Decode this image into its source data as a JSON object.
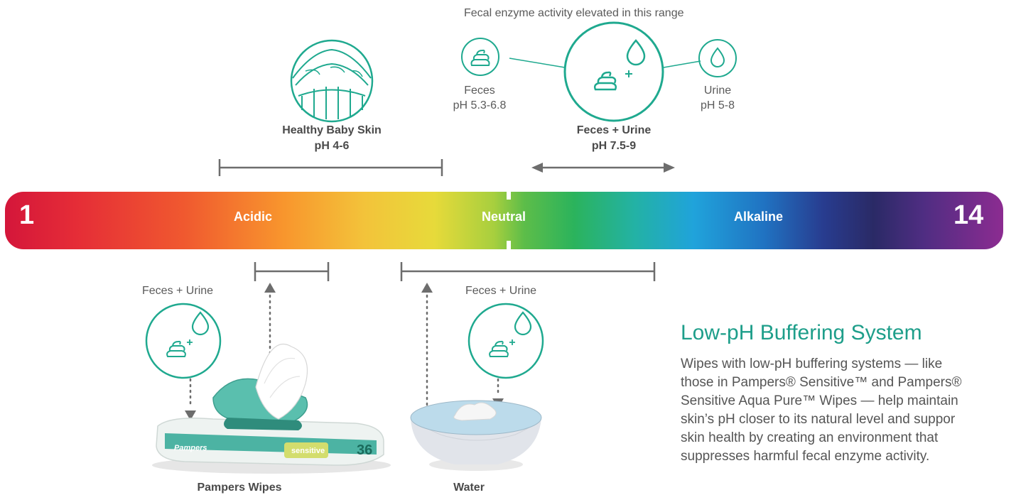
{
  "top_note": "Fecal enzyme activity elevated in this range",
  "healthy_skin": {
    "name": "Healthy Baby Skin",
    "ph": "pH 4-6"
  },
  "feces": {
    "name": "Feces",
    "ph": "pH 5.3-6.8"
  },
  "feces_urine": {
    "name": "Feces + Urine",
    "ph": "pH 7.5-9"
  },
  "urine": {
    "name": "Urine",
    "ph": "pH 5-8"
  },
  "scale": {
    "min": "1",
    "max": "14",
    "acidic": "Acidic",
    "neutral": "Neutral",
    "alkaline": "Alkaline"
  },
  "wipes_side": {
    "label": "Feces + Urine",
    "product": "Pampers Wipes"
  },
  "water_side": {
    "label": "Feces + Urine",
    "product": "Water"
  },
  "wipes_pack": {
    "brand": "Pampers",
    "variant": "sensitive",
    "count": "36"
  },
  "buffer": {
    "title": "Low-pH Buffering System",
    "lines": [
      "Wipes with low-pH buffering systems — like",
      "those in Pampers® Sensitive™ and Pampers®",
      "Sensitive Aqua Pure™ Wipes — help maintain",
      "skin’s pH closer to its natural level and suppor",
      "skin health by creating an environment that",
      "suppresses harmful fecal enzyme activity."
    ]
  },
  "colors": {
    "teal": "#1fa98f",
    "gray": "#6d6d6d",
    "heading": "#1e9e8a"
  }
}
